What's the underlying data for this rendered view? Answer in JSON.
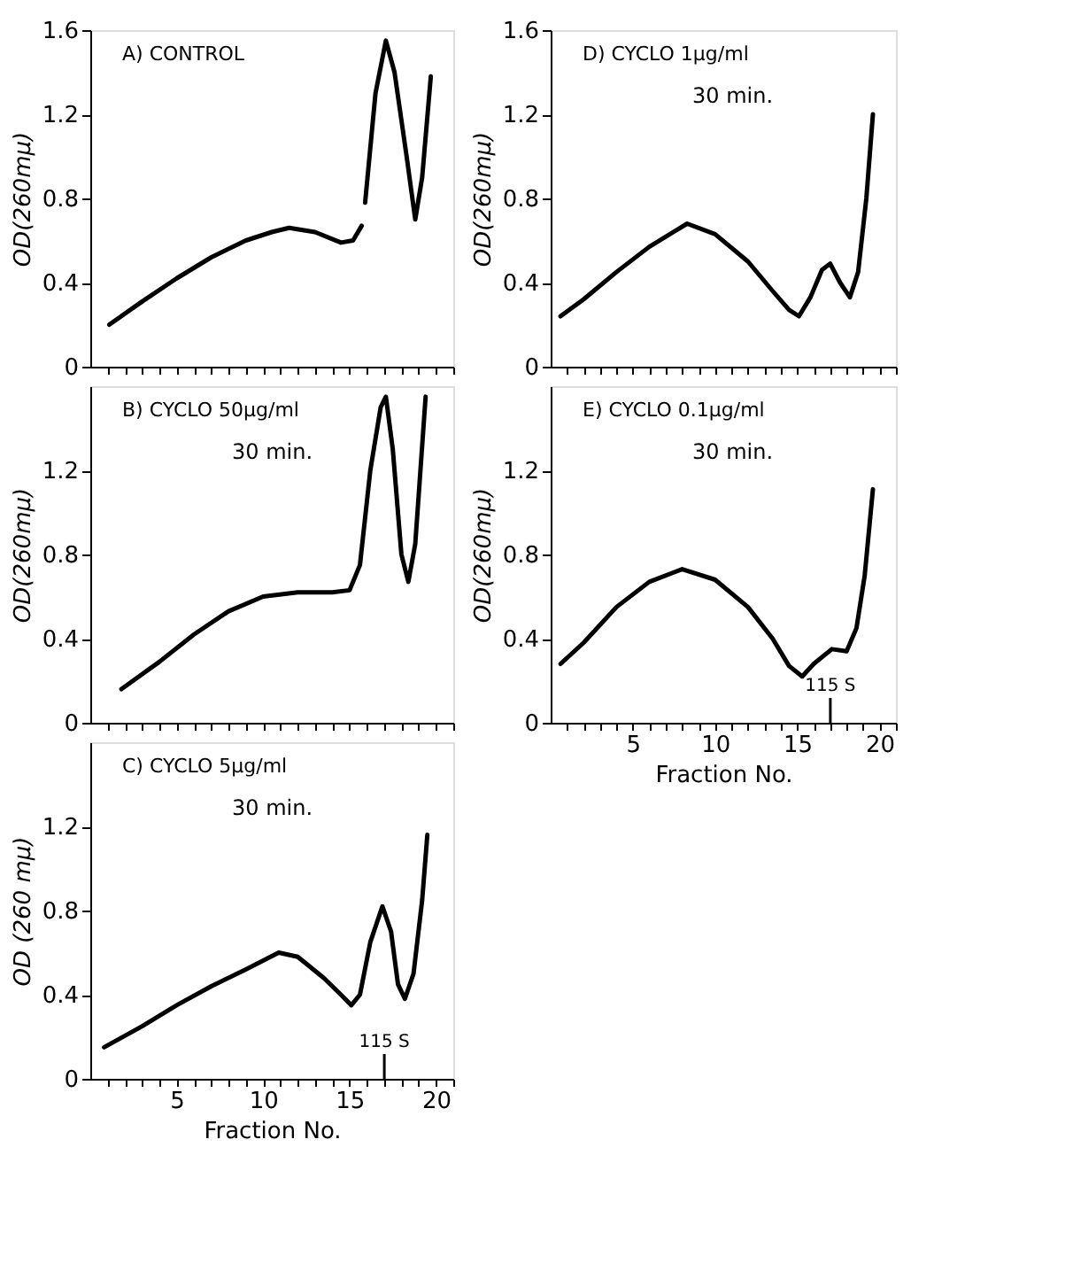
{
  "chart_data": [
    {
      "type": "line",
      "title": "A) CONTROL",
      "ylabel": "OD(260mμ)",
      "color": "#000000",
      "xlim": [
        0,
        21
      ],
      "ylim": [
        0,
        1.6
      ],
      "yticks": [
        0,
        0.4,
        0.8,
        1.2,
        1.6
      ],
      "tick_labels": "y",
      "xticks": [
        {
          "value": 1,
          "label": null
        },
        {
          "value": 2,
          "label": null
        },
        {
          "value": 3,
          "label": null
        },
        {
          "value": 4,
          "label": null
        },
        {
          "value": 5,
          "label": null
        },
        {
          "value": 6,
          "label": null
        },
        {
          "value": 7,
          "label": null
        },
        {
          "value": 8,
          "label": null
        },
        {
          "value": 9,
          "label": null
        },
        {
          "value": 10,
          "label": null
        },
        {
          "value": 11,
          "label": null
        },
        {
          "value": 12,
          "label": null
        },
        {
          "value": 13,
          "label": null
        },
        {
          "value": 14,
          "label": null
        },
        {
          "value": 15,
          "label": null
        },
        {
          "value": 16,
          "label": null
        },
        {
          "value": 17,
          "label": null
        },
        {
          "value": 18,
          "label": null
        },
        {
          "value": 19,
          "label": null
        },
        {
          "value": 20,
          "label": null
        },
        {
          "value": 21,
          "label": null
        }
      ],
      "x": [
        1.1,
        3,
        5,
        7,
        9,
        10.5,
        11.5,
        13,
        14.5,
        15.2,
        15.7,
        15.75,
        15.9,
        16.5,
        17.1,
        17.6,
        18.3,
        18.8,
        19.2,
        19.7
      ],
      "values": [
        0.2,
        0.31,
        0.42,
        0.52,
        0.6,
        0.64,
        0.66,
        0.64,
        0.59,
        0.6,
        0.67,
        null,
        0.78,
        1.3,
        1.55,
        1.4,
        1.0,
        0.7,
        0.9,
        1.38
      ]
    },
    {
      "type": "line",
      "title": "B) CYCLO  50μg/ml",
      "subtitle": "30 min.",
      "ylabel": "OD(260mμ)",
      "color": "#000000",
      "xlim": [
        0,
        21
      ],
      "ylim": [
        0,
        1.6
      ],
      "yticks": [
        0,
        0.4,
        0.8,
        1.2
      ],
      "tick_labels": "y",
      "xticks": [
        {
          "value": 1,
          "label": null
        },
        {
          "value": 2,
          "label": null
        },
        {
          "value": 3,
          "label": null
        },
        {
          "value": 4,
          "label": null
        },
        {
          "value": 5,
          "label": null
        },
        {
          "value": 6,
          "label": null
        },
        {
          "value": 7,
          "label": null
        },
        {
          "value": 8,
          "label": null
        },
        {
          "value": 9,
          "label": null
        },
        {
          "value": 10,
          "label": null
        },
        {
          "value": 11,
          "label": null
        },
        {
          "value": 12,
          "label": null
        },
        {
          "value": 13,
          "label": null
        },
        {
          "value": 14,
          "label": null
        },
        {
          "value": 15,
          "label": null
        },
        {
          "value": 16,
          "label": null
        },
        {
          "value": 17,
          "label": null
        },
        {
          "value": 18,
          "label": null
        },
        {
          "value": 19,
          "label": null
        },
        {
          "value": 20,
          "label": null
        },
        {
          "value": 21,
          "label": null
        }
      ],
      "x": [
        1.8,
        4,
        6,
        8,
        10,
        12,
        14,
        15,
        15.6,
        16.2,
        16.8,
        17.1,
        17.5,
        18.0,
        18.4,
        18.8,
        19.4
      ],
      "values": [
        0.16,
        0.29,
        0.42,
        0.53,
        0.6,
        0.62,
        0.62,
        0.63,
        0.75,
        1.2,
        1.5,
        1.55,
        1.3,
        0.8,
        0.67,
        0.85,
        1.55
      ]
    },
    {
      "type": "line",
      "title": "C) CYCLO  5μg/ml",
      "subtitle": "30 min.",
      "ylabel": "OD (260 mμ)",
      "xlabel": "Fraction No.",
      "color": "#000000",
      "xlim": [
        0,
        21
      ],
      "ylim": [
        0,
        1.6
      ],
      "yticks": [
        0,
        0.4,
        0.8,
        1.2
      ],
      "xticks": [
        {
          "value": 1,
          "label": null
        },
        {
          "value": 2,
          "label": null
        },
        {
          "value": 3,
          "label": null
        },
        {
          "value": 4,
          "label": null
        },
        {
          "value": 5,
          "label": "5"
        },
        {
          "value": 6,
          "label": null
        },
        {
          "value": 7,
          "label": null
        },
        {
          "value": 8,
          "label": null
        },
        {
          "value": 9,
          "label": null
        },
        {
          "value": 10,
          "label": "10"
        },
        {
          "value": 11,
          "label": null
        },
        {
          "value": 12,
          "label": null
        },
        {
          "value": 13,
          "label": null
        },
        {
          "value": 14,
          "label": null
        },
        {
          "value": 15,
          "label": "15"
        },
        {
          "value": 16,
          "label": null
        },
        {
          "value": 17,
          "label": null
        },
        {
          "value": 18,
          "label": null
        },
        {
          "value": 19,
          "label": null
        },
        {
          "value": 20,
          "label": "20"
        },
        {
          "value": 21,
          "label": null
        }
      ],
      "x": [
        0.8,
        3,
        5,
        7,
        9,
        10.9,
        12,
        13.5,
        14.5,
        15.1,
        15.6,
        16.2,
        16.9,
        17.4,
        17.8,
        18.2,
        18.7,
        19.2,
        19.5
      ],
      "values": [
        0.15,
        0.25,
        0.35,
        0.44,
        0.52,
        0.6,
        0.58,
        0.48,
        0.4,
        0.35,
        0.4,
        0.65,
        0.82,
        0.7,
        0.45,
        0.38,
        0.5,
        0.85,
        1.16
      ],
      "annotations": [
        "115 S"
      ]
    },
    {
      "type": "line",
      "title": "D) CYCLO  1μg/ml",
      "subtitle": "30 min.",
      "ylabel": "OD(260mμ)",
      "color": "#000000",
      "xlim": [
        0,
        21
      ],
      "ylim": [
        0,
        1.6
      ],
      "yticks": [
        0,
        0.4,
        0.8,
        1.2,
        1.6
      ],
      "tick_labels": "y",
      "xticks": [
        {
          "value": 1,
          "label": null
        },
        {
          "value": 2,
          "label": null
        },
        {
          "value": 3,
          "label": null
        },
        {
          "value": 4,
          "label": null
        },
        {
          "value": 5,
          "label": null
        },
        {
          "value": 6,
          "label": null
        },
        {
          "value": 7,
          "label": null
        },
        {
          "value": 8,
          "label": null
        },
        {
          "value": 9,
          "label": null
        },
        {
          "value": 10,
          "label": null
        },
        {
          "value": 11,
          "label": null
        },
        {
          "value": 12,
          "label": null
        },
        {
          "value": 13,
          "label": null
        },
        {
          "value": 14,
          "label": null
        },
        {
          "value": 15,
          "label": null
        },
        {
          "value": 16,
          "label": null
        },
        {
          "value": 17,
          "label": null
        },
        {
          "value": 18,
          "label": null
        },
        {
          "value": 19,
          "label": null
        },
        {
          "value": 20,
          "label": null
        },
        {
          "value": 21,
          "label": null
        }
      ],
      "x": [
        0.6,
        2,
        4,
        6,
        8.3,
        10,
        12,
        13.5,
        14.5,
        15.1,
        15.8,
        16.5,
        17,
        17.6,
        18.2,
        18.7,
        19.2,
        19.6
      ],
      "values": [
        0.24,
        0.32,
        0.45,
        0.57,
        0.68,
        0.63,
        0.5,
        0.36,
        0.27,
        0.24,
        0.33,
        0.46,
        0.49,
        0.4,
        0.33,
        0.45,
        0.8,
        1.2
      ]
    },
    {
      "type": "line",
      "title": "E) CYCLO  0.1μg/ml",
      "subtitle": "30 min.",
      "ylabel": "OD(260mμ)",
      "xlabel": "Fraction No.",
      "color": "#000000",
      "xlim": [
        0,
        21
      ],
      "ylim": [
        0,
        1.6
      ],
      "yticks": [
        0,
        0.4,
        0.8,
        1.2
      ],
      "xticks": [
        {
          "value": 1,
          "label": null
        },
        {
          "value": 2,
          "label": null
        },
        {
          "value": 3,
          "label": null
        },
        {
          "value": 4,
          "label": null
        },
        {
          "value": 5,
          "label": "5"
        },
        {
          "value": 6,
          "label": null
        },
        {
          "value": 7,
          "label": null
        },
        {
          "value": 8,
          "label": null
        },
        {
          "value": 9,
          "label": null
        },
        {
          "value": 10,
          "label": "10"
        },
        {
          "value": 11,
          "label": null
        },
        {
          "value": 12,
          "label": null
        },
        {
          "value": 13,
          "label": null
        },
        {
          "value": 14,
          "label": null
        },
        {
          "value": 15,
          "label": "15"
        },
        {
          "value": 16,
          "label": null
        },
        {
          "value": 17,
          "label": null
        },
        {
          "value": 18,
          "label": null
        },
        {
          "value": 19,
          "label": null
        },
        {
          "value": 20,
          "label": "20"
        },
        {
          "value": 21,
          "label": null
        }
      ],
      "x": [
        0.6,
        2,
        4,
        6,
        8,
        10,
        12,
        13.5,
        14.5,
        15.3,
        16,
        17.1,
        18,
        18.6,
        19.1,
        19.6
      ],
      "values": [
        0.28,
        0.38,
        0.55,
        0.67,
        0.73,
        0.68,
        0.55,
        0.4,
        0.27,
        0.22,
        0.28,
        0.35,
        0.34,
        0.45,
        0.7,
        1.11
      ],
      "annotations": [
        "115 S"
      ]
    }
  ]
}
